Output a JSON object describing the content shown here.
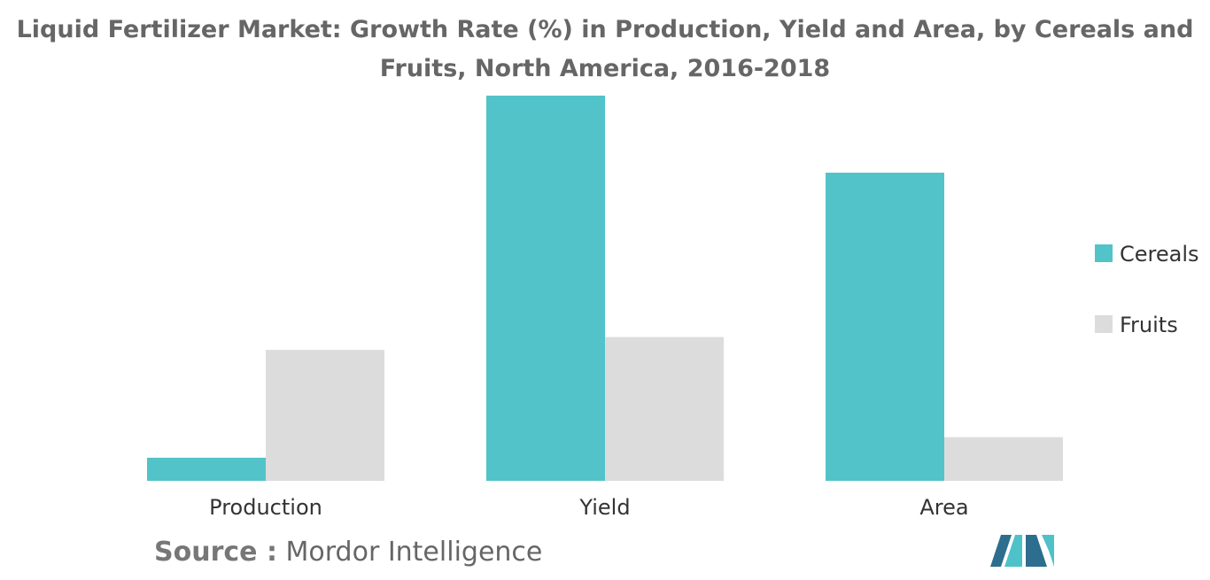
{
  "title": {
    "line1": "Liquid Fertilizer Market: Growth Rate (%) in Production, Yield and Area, by Cereals and",
    "line2": "Fruits, North America, 2016-2018"
  },
  "source": {
    "label": "Source :",
    "text": "Mordor Intelligence"
  },
  "colors": {
    "cereals": "#52C3C8",
    "fruits": "#DCDCDC",
    "logo_dark": "#2D6E8E",
    "logo_light": "#4FC1C8"
  },
  "logo_icon": "mordor-intelligence-logo",
  "chart_data": {
    "type": "bar",
    "title": "Liquid Fertilizer Market: Growth Rate (%) in Production, Yield and Area, by Cereals and Fruits, North America, 2016-2018",
    "xlabel": "",
    "ylabel": "",
    "categories": [
      "Production",
      "Yield",
      "Area"
    ],
    "series": [
      {
        "name": "Cereals",
        "values": [
          0.9,
          15.0,
          12.0
        ]
      },
      {
        "name": "Fruits",
        "values": [
          5.1,
          5.6,
          1.7
        ]
      }
    ],
    "ylim": [
      0,
      15.0
    ],
    "grid": false,
    "legend": "right",
    "note": "No y-axis is shown; values are relative estimates read from bar heights"
  }
}
